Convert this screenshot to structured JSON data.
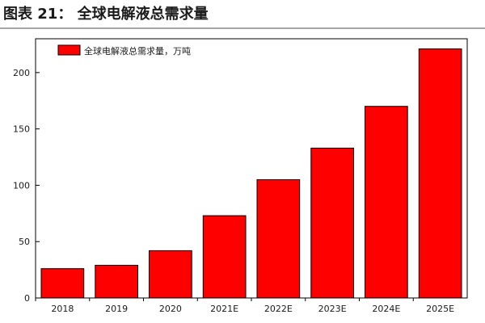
{
  "figure": {
    "title": "图表 21： 全球电解液总需求量"
  },
  "colors": {
    "bar": "#ff0000",
    "bar_stroke": "#000000",
    "rule": "#a6a6a6",
    "axis": "#000000",
    "text": "#1a1a1a"
  },
  "chart_data": {
    "type": "bar",
    "title": "",
    "xlabel": "",
    "ylabel": "",
    "categories": [
      "2018",
      "2019",
      "2020",
      "2021E",
      "2022E",
      "2023E",
      "2024E",
      "2025E"
    ],
    "series": [
      {
        "name": "全球电解液总需求量，万吨",
        "values": [
          26,
          29,
          42,
          73,
          105,
          133,
          170,
          221
        ]
      }
    ],
    "ylim": [
      0,
      230
    ],
    "yticks": [
      0,
      50,
      100,
      150,
      200
    ],
    "grid": false,
    "legend": "top-left"
  }
}
